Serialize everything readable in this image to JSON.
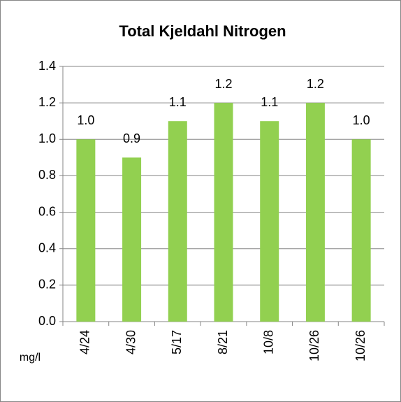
{
  "chart_data": {
    "type": "bar",
    "title": "Total Kjeldahl Nitrogen",
    "unit_label": "mg/l",
    "categories": [
      "4/24",
      "4/30",
      "5/17",
      "8/21",
      "10/8",
      "10/26",
      "10/26"
    ],
    "values": [
      1.0,
      0.9,
      1.1,
      1.2,
      1.1,
      1.2,
      1.0
    ],
    "value_labels": [
      "1.0",
      "0.9",
      "1.1",
      "1.2",
      "1.1",
      "1.2",
      "1.0"
    ],
    "color": "#92d050",
    "ylim": [
      0,
      1.4
    ],
    "yticks": [
      {
        "value": 0,
        "label": "0.0"
      },
      0.2,
      0.4,
      0.6,
      0.8,
      {
        "value": 1,
        "label": "1.0"
      },
      1.2,
      1.4
    ],
    "grid": true
  }
}
